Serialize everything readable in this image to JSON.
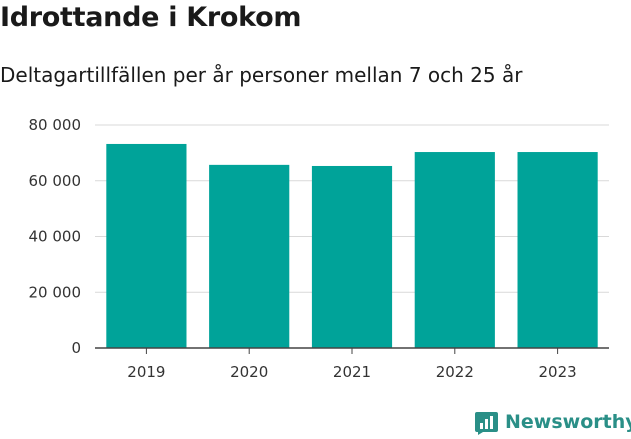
{
  "header": {
    "title": "Idrottande i Krokom",
    "subtitle": "Deltagartillfällen per år personer mellan 7 och 25 år"
  },
  "brand": {
    "name": "Newsworthy",
    "icon": "bar-chart-logo-icon",
    "color": "#2a8f87"
  },
  "chart_data": {
    "type": "bar",
    "categories": [
      "2019",
      "2020",
      "2021",
      "2022",
      "2023"
    ],
    "values": [
      73200,
      65700,
      65300,
      70300,
      70300
    ],
    "ylim": [
      0,
      80000
    ],
    "yticks": [
      0,
      20000,
      40000,
      60000,
      80000
    ],
    "ytick_labels": [
      "0",
      "20 000",
      "40 000",
      "60 000",
      "80 000"
    ],
    "bar_color": "#00a399",
    "grid": true,
    "legend": "none"
  }
}
